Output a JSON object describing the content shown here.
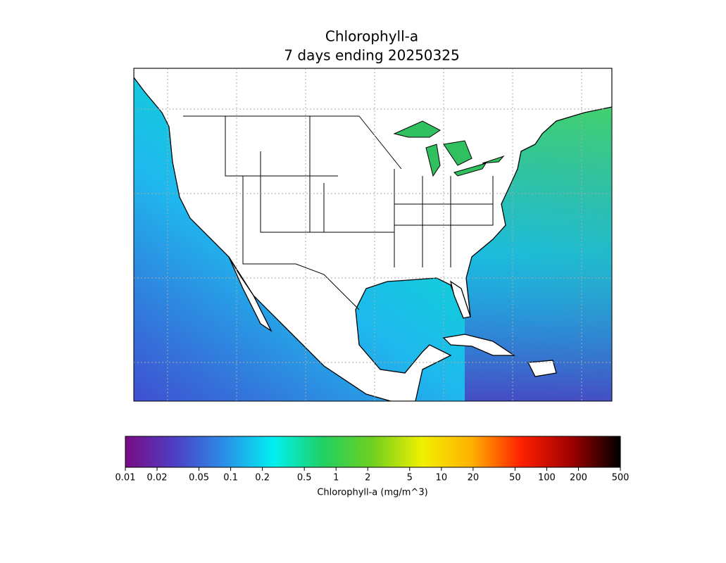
{
  "map": {
    "title": "Chlorophyll-a",
    "subtitle": "7 days ending 20250325"
  },
  "colorbar": {
    "label": "Chlorophyll-a (mg/m^3)",
    "log_scale": true,
    "lim": [
      0.01,
      500
    ],
    "ticks": [
      0.01,
      0.02,
      0.05,
      0.1,
      0.2,
      0.5,
      1,
      2,
      5,
      10,
      20,
      50,
      100,
      200,
      500
    ],
    "colormap": [
      "#7b0b84",
      "#4d3fc4",
      "#2a8ee8",
      "#00f0f0",
      "#20d060",
      "#70d020",
      "#f0f000",
      "#ffb000",
      "#ff2000",
      "#a00000",
      "#000000"
    ]
  }
}
